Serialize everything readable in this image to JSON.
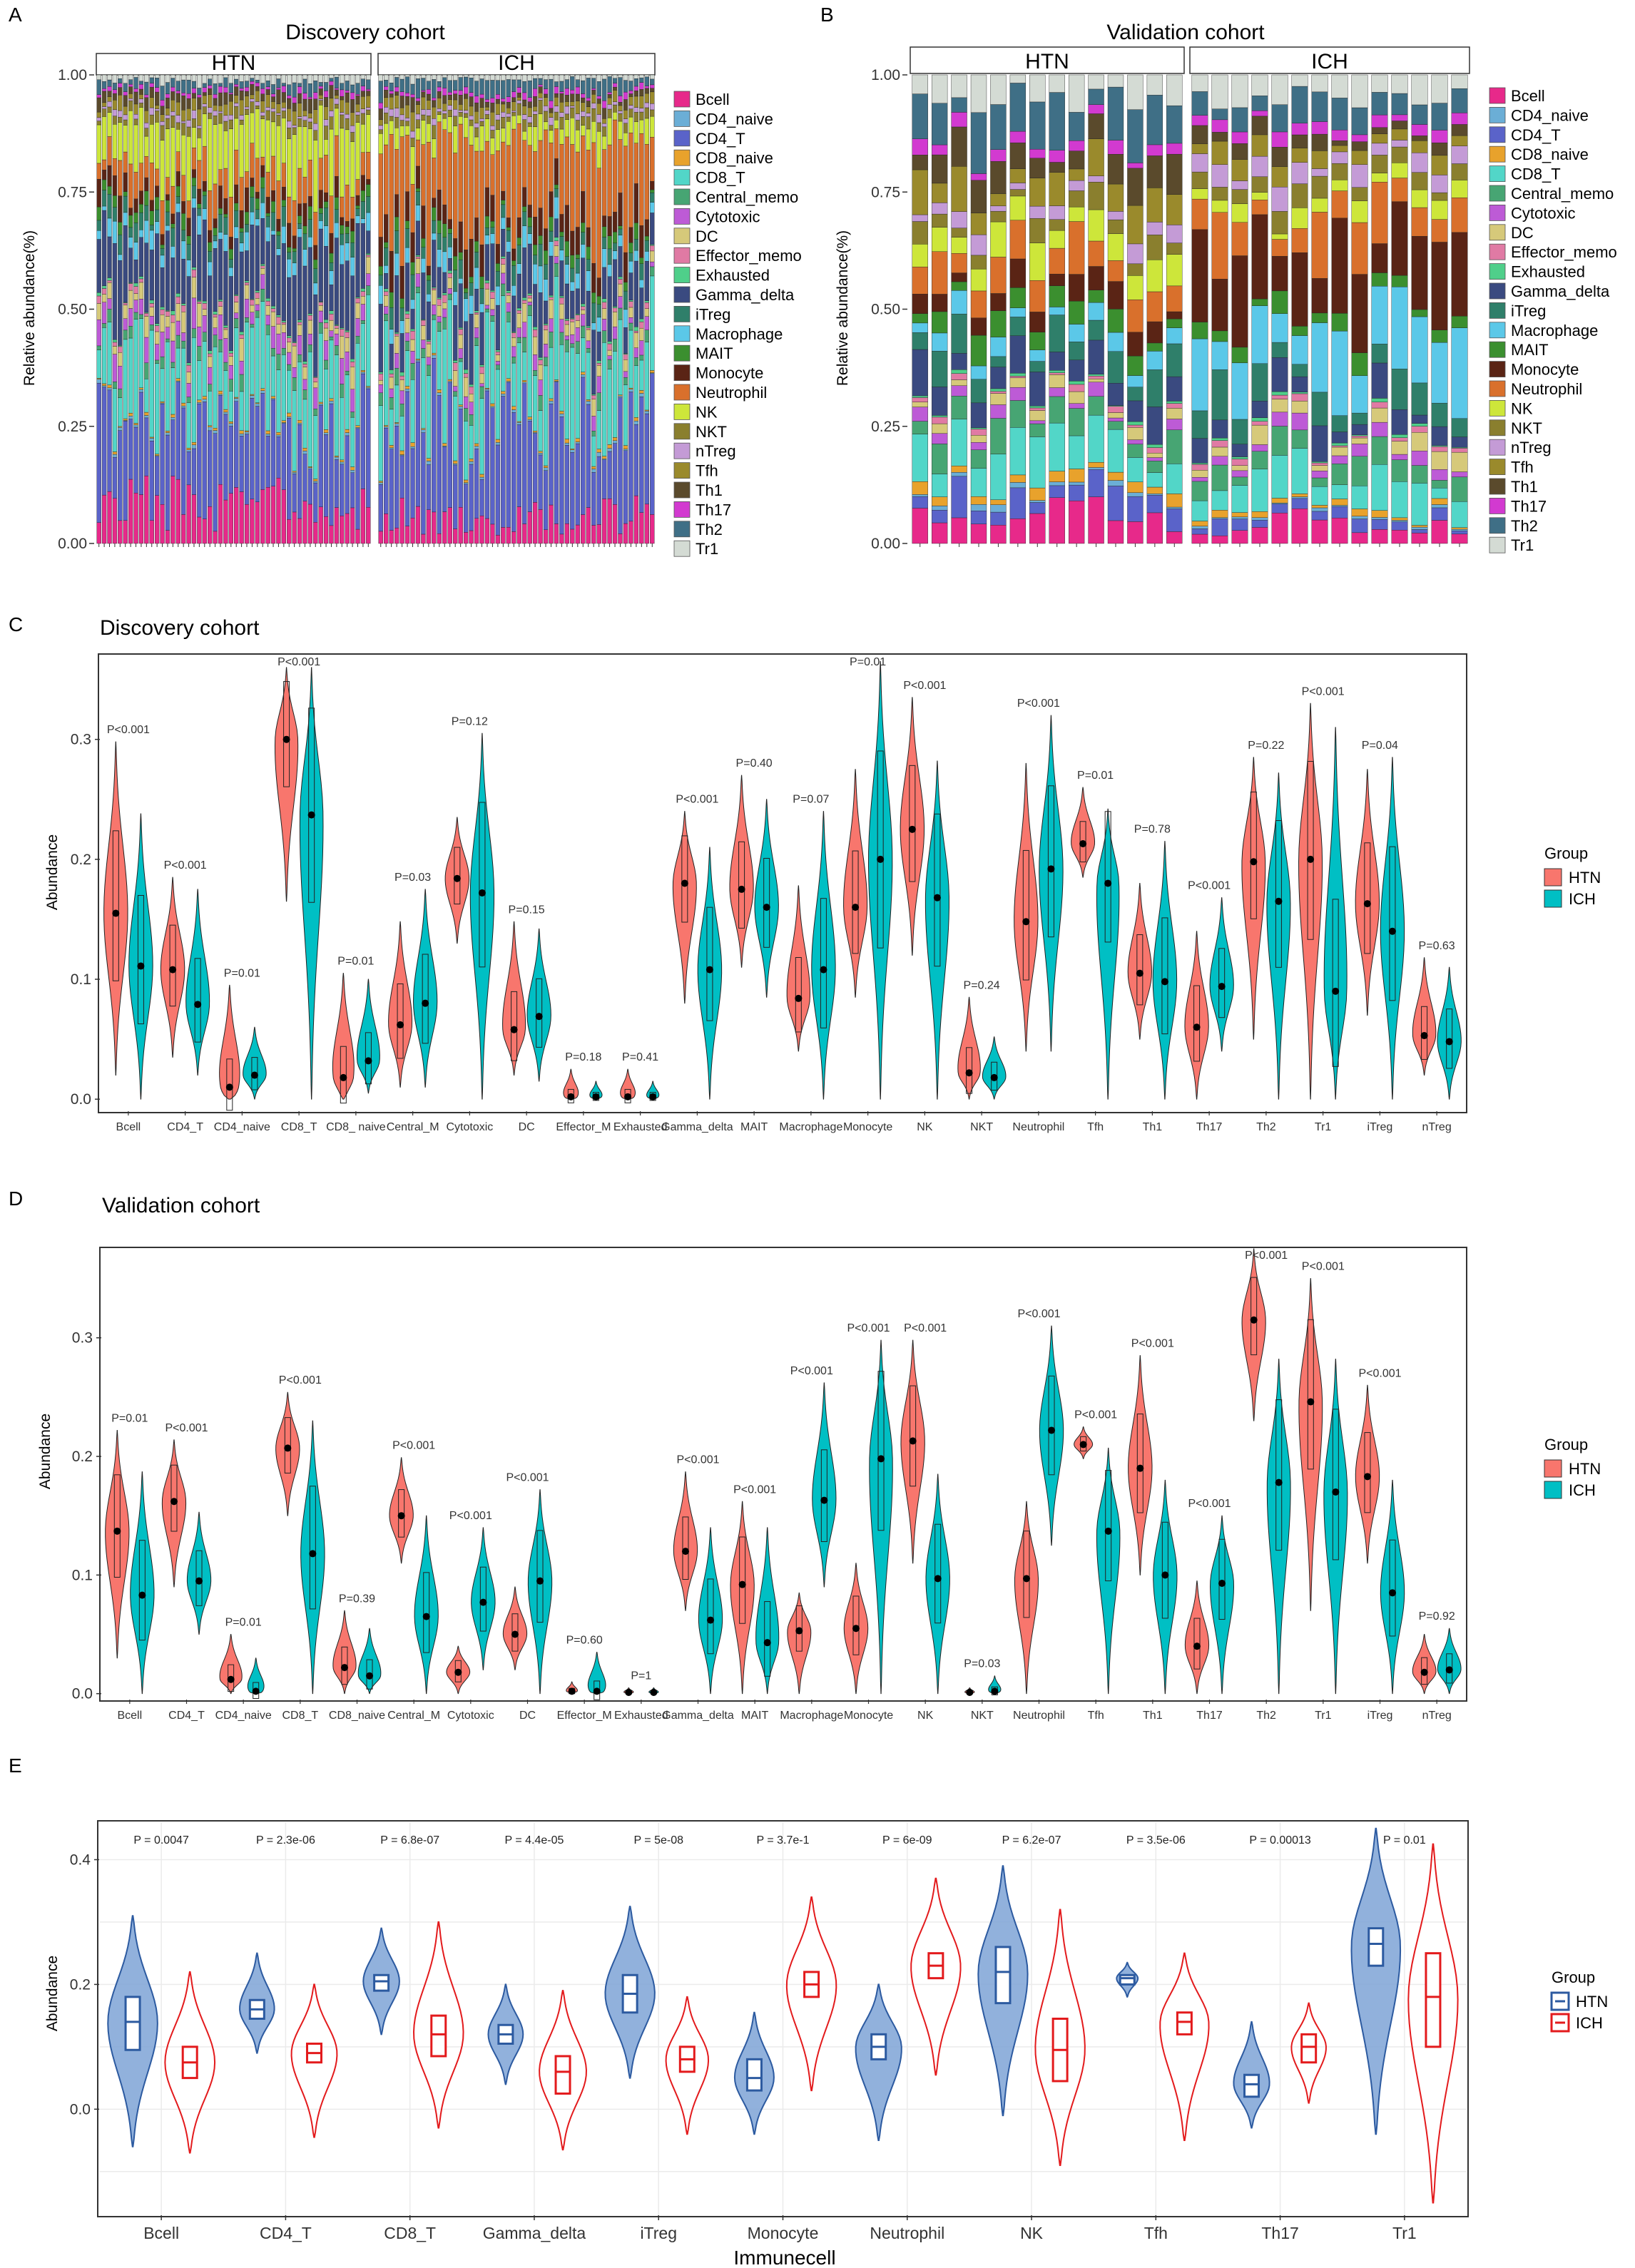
{
  "panel_letters": {
    "A": "A",
    "B": "B",
    "C": "C",
    "D": "D",
    "E": "E"
  },
  "colors": {
    "cells": {
      "Bcell": "#e7298a",
      "CD4_naive": "#6baed6",
      "CD4_T": "#5a63c9",
      "CD8_naive": "#e8a22c",
      "CD8_T": "#52d6c8",
      "Central_memo": "#47a573",
      "Cytotoxic": "#bd5bd6",
      "DC": "#d6c97a",
      "Effector_memo": "#e07aa4",
      "Exhausted": "#4fcf8a",
      "Gamma_delta": "#3a4a80",
      "iTreg": "#2f7f6a",
      "Macrophage": "#5bc8e8",
      "MAIT": "#3b8f2f",
      "Monocyte": "#5a2415",
      "Neutrophil": "#d9702c",
      "NK": "#cde63a",
      "NKT": "#8a7f2e",
      "nTreg": "#c49bd6",
      "Tfh": "#9a8a2c",
      "Th1": "#5a4a2c",
      "Th17": "#d23ad0",
      "Th2": "#3f6f86",
      "Tr1": "#d4dbd4"
    },
    "htn_red": "#f8766d",
    "ich_teal": "#00bfc4",
    "htn_blue": "#2c5aa0",
    "ich_red": "#e31a1c"
  },
  "chart_data": [
    {
      "id": "A",
      "type": "bar",
      "stacked": true,
      "title": "Discovery cohort",
      "ylabel": "Relative abundance(%)",
      "ylim": [
        0,
        1
      ],
      "yticks": [
        "0.00",
        "0.25",
        "0.50",
        "0.75",
        "1.00"
      ],
      "facets": [
        "HTN",
        "ICH"
      ],
      "bars_per_facet": [
        52,
        52
      ],
      "legend": [
        "Bcell",
        "CD4_naive",
        "CD4_T",
        "CD8_naive",
        "CD8_T",
        "Central_memo",
        "Cytotoxic",
        "DC",
        "Effector_memo",
        "Exhausted",
        "Gamma_delta",
        "iTreg",
        "Macrophage",
        "MAIT",
        "Monocyte",
        "Neutrophil",
        "NK",
        "NKT",
        "nTreg",
        "Tfh",
        "Th1",
        "Th17",
        "Th2",
        "Tr1"
      ],
      "stack_order": [
        "Bcell",
        "CD4_T",
        "CD4_naive",
        "CD8_naive",
        "CD8_T",
        "Central_memo",
        "Cytotoxic",
        "DC",
        "Effector_memo",
        "Exhausted",
        "Gamma_delta",
        "Macrophage",
        "iTreg",
        "MAIT",
        "Monocyte",
        "Neutrophil",
        "NK",
        "NKT",
        "nTreg",
        "Tfh",
        "Th1",
        "Th17",
        "Th2",
        "Tr1"
      ],
      "mean_htn": [
        0.09,
        0.2,
        0.005,
        0.005,
        0.16,
        0.02,
        0.04,
        0.03,
        0.01,
        0.005,
        0.14,
        0.03,
        0.03,
        0.02,
        0.035,
        0.06,
        0.1,
        0.02,
        0.01,
        0.02,
        0.02,
        0.01,
        0.02,
        0.015
      ],
      "mean_ich": [
        0.06,
        0.22,
        0.005,
        0.005,
        0.16,
        0.02,
        0.02,
        0.025,
        0.01,
        0.005,
        0.09,
        0.03,
        0.03,
        0.02,
        0.05,
        0.17,
        0.04,
        0.02,
        0.01,
        0.02,
        0.015,
        0.01,
        0.03,
        0.01
      ]
    },
    {
      "id": "B",
      "type": "bar",
      "stacked": true,
      "title": "Validation cohort",
      "ylabel": "Relative abundance(%)",
      "ylim": [
        0,
        1
      ],
      "yticks": [
        "0.00",
        "0.25",
        "0.50",
        "0.75",
        "1.00"
      ],
      "facets": [
        "HTN",
        "ICH"
      ],
      "bars_per_facet": [
        14,
        14
      ],
      "legend": [
        "Bcell",
        "CD4_naive",
        "CD4_T",
        "CD8_naive",
        "CD8_T",
        "Central_memo",
        "Cytotoxic",
        "DC",
        "Effector_memo",
        "Exhausted",
        "Gamma_delta",
        "iTreg",
        "Macrophage",
        "MAIT",
        "Monocyte",
        "Neutrophil",
        "NK",
        "NKT",
        "nTreg",
        "Tfh",
        "Th1",
        "Th17",
        "Th2",
        "Tr1"
      ],
      "stack_order": [
        "Bcell",
        "CD4_T",
        "CD4_naive",
        "CD8_naive",
        "CD8_T",
        "Central_memo",
        "Cytotoxic",
        "DC",
        "Effector_memo",
        "Exhausted",
        "Gamma_delta",
        "iTreg",
        "Macrophage",
        "MAIT",
        "Monocyte",
        "Neutrophil",
        "NK",
        "NKT",
        "nTreg",
        "Tfh",
        "Th1",
        "Th17",
        "Th2",
        "Tr1"
      ],
      "mean_htn": [
        0.07,
        0.05,
        0.01,
        0.02,
        0.09,
        0.05,
        0.02,
        0.02,
        0.01,
        0.005,
        0.06,
        0.06,
        0.03,
        0.04,
        0.04,
        0.07,
        0.06,
        0.04,
        0.03,
        0.06,
        0.06,
        0.02,
        0.08,
        0.05
      ],
      "mean_ich": [
        0.04,
        0.02,
        0.005,
        0.01,
        0.06,
        0.04,
        0.02,
        0.03,
        0.01,
        0.005,
        0.05,
        0.06,
        0.15,
        0.03,
        0.15,
        0.09,
        0.03,
        0.03,
        0.04,
        0.04,
        0.03,
        0.02,
        0.05,
        0.05
      ]
    },
    {
      "id": "C",
      "type": "violin",
      "title": "Discovery cohort",
      "ylabel": "Abundance",
      "ylim": [
        -0.01,
        0.37
      ],
      "yticks": [
        0.0,
        0.1,
        0.2,
        0.3
      ],
      "legend_title": "Group",
      "groups": [
        "HTN",
        "ICH"
      ],
      "categories": [
        "Bcell",
        "CD4_T",
        "CD4_naive",
        "CD8_T",
        "CD8_ naive",
        "Central_M",
        "Cytotoxic",
        "DC",
        "Effector_M",
        "Exhausted",
        "Gamma_delta",
        "MAIT",
        "Macrophage",
        "Monocyte",
        "NK",
        "NKT",
        "Neutrophil",
        "Tfh",
        "Th1",
        "Th17",
        "Th2",
        "Tr1",
        "iTreg",
        "nTreg"
      ],
      "pvalues": [
        "P<0.001",
        "P<0.001",
        "P=0.01",
        "P<0.001",
        "P=0.01",
        "P=0.03",
        "P=0.12",
        "P=0.15",
        "P=0.18",
        "P=0.41",
        "P<0.001",
        "P=0.40",
        "P=0.07",
        "P=0.01",
        "P<0.001",
        "P=0.24",
        "P<0.001",
        "P=0.01",
        "P=0.78",
        "P<0.001",
        "P=0.22",
        "P<0.001",
        "P=0.04",
        "P=0.63"
      ],
      "htn": [
        [
          0.02,
          0.155,
          0.298
        ],
        [
          0.035,
          0.108,
          0.185
        ],
        [
          0.0,
          0.01,
          0.095
        ],
        [
          0.165,
          0.3,
          0.36
        ],
        [
          0.0,
          0.018,
          0.105
        ],
        [
          0.01,
          0.062,
          0.148
        ],
        [
          0.13,
          0.184,
          0.235
        ],
        [
          0.02,
          0.058,
          0.148
        ],
        [
          0.0,
          0.002,
          0.025
        ],
        [
          0.0,
          0.002,
          0.025
        ],
        [
          0.08,
          0.18,
          0.24
        ],
        [
          0.11,
          0.175,
          0.27
        ],
        [
          0.04,
          0.084,
          0.178
        ],
        [
          0.085,
          0.16,
          0.275
        ],
        [
          0.12,
          0.225,
          0.335
        ],
        [
          0.0,
          0.022,
          0.085
        ],
        [
          0.04,
          0.148,
          0.28
        ],
        [
          0.185,
          0.213,
          0.26
        ],
        [
          0.05,
          0.105,
          0.18
        ],
        [
          0.0,
          0.06,
          0.14
        ],
        [
          0.05,
          0.198,
          0.285
        ],
        [
          0.0,
          0.2,
          0.33
        ],
        [
          0.07,
          0.163,
          0.275
        ],
        [
          0.02,
          0.053,
          0.118
        ]
      ],
      "ich": [
        [
          0.0,
          0.111,
          0.238
        ],
        [
          0.02,
          0.079,
          0.175
        ],
        [
          0.0,
          0.02,
          0.06
        ],
        [
          0.0,
          0.237,
          0.36
        ],
        [
          0.005,
          0.032,
          0.1
        ],
        [
          0.01,
          0.08,
          0.175
        ],
        [
          0.0,
          0.172,
          0.305
        ],
        [
          0.015,
          0.069,
          0.142
        ],
        [
          0.0,
          0.002,
          0.015
        ],
        [
          0.0,
          0.002,
          0.015
        ],
        [
          0.0,
          0.108,
          0.21
        ],
        [
          0.085,
          0.16,
          0.25
        ],
        [
          0.0,
          0.108,
          0.24
        ],
        [
          0.0,
          0.2,
          0.365
        ],
        [
          0.0,
          0.168,
          0.282
        ],
        [
          0.0,
          0.018,
          0.052
        ],
        [
          0.04,
          0.192,
          0.32
        ],
        [
          0.0,
          0.18,
          0.242
        ],
        [
          0.0,
          0.098,
          0.215
        ],
        [
          0.04,
          0.094,
          0.168
        ],
        [
          0.0,
          0.165,
          0.272
        ],
        [
          0.0,
          0.09,
          0.31
        ],
        [
          0.0,
          0.14,
          0.285
        ],
        [
          0.0,
          0.048,
          0.11
        ]
      ]
    },
    {
      "id": "D",
      "type": "violin",
      "title": "Validation cohort",
      "ylabel": "Abundance",
      "ylim": [
        -0.005,
        0.375
      ],
      "yticks": [
        0.0,
        0.1,
        0.2,
        0.3
      ],
      "legend_title": "Group",
      "groups": [
        "HTN",
        "ICH"
      ],
      "categories": [
        "Bcell",
        "CD4_T",
        "CD4_naive",
        "CD8_T",
        "CD8_naive",
        "Central_M",
        "Cytotoxic",
        "DC",
        "Effector_M",
        "Exhausted",
        "Gamma_delta",
        "MAIT",
        "Macrophage",
        "Monocyte",
        "NK",
        "NKT",
        "Neutrophil",
        "Tfh",
        "Th1",
        "Th17",
        "Th2",
        "Tr1",
        "iTreg",
        "nTreg"
      ],
      "pvalues": [
        "P=0.01",
        "P<0.001",
        "P=0.01",
        "P<0.001",
        "P=0.39",
        "P<0.001",
        "P<0.001",
        "P<0.001",
        "P=0.60",
        "P=1",
        "P<0.001",
        "P<0.001",
        "P<0.001",
        "P<0.001",
        "P<0.001",
        "P=0.03",
        "P<0.001",
        "P<0.001",
        "P<0.001",
        "P<0.001",
        "P<0.001",
        "P<0.001",
        "P<0.001",
        "P=0.92"
      ],
      "htn": [
        [
          0.03,
          0.137,
          0.222
        ],
        [
          0.09,
          0.162,
          0.214
        ],
        [
          0.0,
          0.012,
          0.05
        ],
        [
          0.15,
          0.207,
          0.254
        ],
        [
          0.0,
          0.022,
          0.07
        ],
        [
          0.11,
          0.15,
          0.199
        ],
        [
          0.0,
          0.018,
          0.04
        ],
        [
          0.02,
          0.05,
          0.09
        ],
        [
          0.0,
          0.002,
          0.01
        ],
        [
          0.0,
          0.001,
          0.005
        ],
        [
          0.07,
          0.12,
          0.187
        ],
        [
          0.0,
          0.092,
          0.162
        ],
        [
          0.0,
          0.053,
          0.085
        ],
        [
          0.0,
          0.055,
          0.11
        ],
        [
          0.11,
          0.213,
          0.298
        ],
        [
          0.0,
          0.001,
          0.005
        ],
        [
          0.0,
          0.097,
          0.162
        ],
        [
          0.198,
          0.21,
          0.225
        ],
        [
          0.1,
          0.19,
          0.285
        ],
        [
          0.0,
          0.04,
          0.095
        ],
        [
          0.23,
          0.315,
          0.375
        ],
        [
          0.07,
          0.246,
          0.35
        ],
        [
          0.11,
          0.183,
          0.26
        ],
        [
          0.0,
          0.018,
          0.05
        ]
      ],
      "ich": [
        [
          0.0,
          0.083,
          0.187
        ],
        [
          0.05,
          0.095,
          0.153
        ],
        [
          0.0,
          0.002,
          0.03
        ],
        [
          0.0,
          0.118,
          0.23
        ],
        [
          0.0,
          0.015,
          0.055
        ],
        [
          0.0,
          0.065,
          0.15
        ],
        [
          0.02,
          0.077,
          0.14
        ],
        [
          0.0,
          0.095,
          0.172
        ],
        [
          0.0,
          0.002,
          0.035
        ],
        [
          0.0,
          0.001,
          0.005
        ],
        [
          0.0,
          0.062,
          0.14
        ],
        [
          0.0,
          0.043,
          0.14
        ],
        [
          0.09,
          0.163,
          0.262
        ],
        [
          0.0,
          0.198,
          0.298
        ],
        [
          0.0,
          0.097,
          0.185
        ],
        [
          0.0,
          0.002,
          0.015
        ],
        [
          0.125,
          0.222,
          0.31
        ],
        [
          0.0,
          0.137,
          0.207
        ],
        [
          0.0,
          0.1,
          0.18
        ],
        [
          0.0,
          0.093,
          0.15
        ],
        [
          0.0,
          0.178,
          0.282
        ],
        [
          0.0,
          0.17,
          0.282
        ],
        [
          0.0,
          0.085,
          0.18
        ],
        [
          0.0,
          0.02,
          0.055
        ]
      ]
    },
    {
      "id": "E",
      "type": "violin",
      "title": "",
      "xlabel": "Immunecell",
      "ylabel": "Abundance",
      "ylim": [
        -0.17,
        0.46
      ],
      "yticks": [
        0.0,
        0.2,
        0.4
      ],
      "legend_title": "Group",
      "groups": [
        "HTN",
        "ICH"
      ],
      "categories": [
        "Bcell",
        "CD4_T",
        "CD8_T",
        "Gamma_delta",
        "iTreg",
        "Monocyte",
        "Neutrophil",
        "NK",
        "Tfh",
        "Th17",
        "Tr1"
      ],
      "pvalues": [
        "P = 0.0047",
        "P = 2.3e-06",
        "P = 6.8e-07",
        "P = 4.4e-05",
        "P = 5e-08",
        "P = 3.7e-1",
        "P = 6e-09",
        "P = 6.2e-07",
        "P = 3.5e-06",
        "P = 0.00013",
        "P = 0.01"
      ],
      "htn": [
        [
          -0.06,
          0.095,
          0.14,
          0.18,
          0.31
        ],
        [
          0.09,
          0.145,
          0.16,
          0.175,
          0.25
        ],
        [
          0.12,
          0.19,
          0.205,
          0.215,
          0.29
        ],
        [
          0.04,
          0.105,
          0.12,
          0.135,
          0.2
        ],
        [
          0.05,
          0.155,
          0.185,
          0.215,
          0.325
        ],
        [
          -0.04,
          0.03,
          0.05,
          0.08,
          0.155
        ],
        [
          -0.05,
          0.08,
          0.1,
          0.12,
          0.2
        ],
        [
          -0.01,
          0.17,
          0.22,
          0.26,
          0.39
        ],
        [
          0.18,
          0.2,
          0.21,
          0.215,
          0.235
        ],
        [
          -0.03,
          0.02,
          0.04,
          0.055,
          0.14
        ],
        [
          -0.04,
          0.23,
          0.265,
          0.29,
          0.45
        ]
      ],
      "ich": [
        [
          -0.07,
          0.05,
          0.075,
          0.1,
          0.22
        ],
        [
          -0.045,
          0.075,
          0.09,
          0.105,
          0.2
        ],
        [
          -0.03,
          0.085,
          0.12,
          0.15,
          0.3
        ],
        [
          -0.065,
          0.025,
          0.06,
          0.085,
          0.19
        ],
        [
          -0.04,
          0.06,
          0.08,
          0.1,
          0.18
        ],
        [
          0.03,
          0.18,
          0.2,
          0.22,
          0.34
        ],
        [
          0.055,
          0.21,
          0.23,
          0.25,
          0.37
        ],
        [
          -0.09,
          0.045,
          0.095,
          0.145,
          0.32
        ],
        [
          -0.05,
          0.12,
          0.14,
          0.155,
          0.25
        ],
        [
          0.01,
          0.075,
          0.1,
          0.12,
          0.17
        ],
        [
          -0.15,
          0.1,
          0.18,
          0.25,
          0.425
        ]
      ]
    }
  ]
}
